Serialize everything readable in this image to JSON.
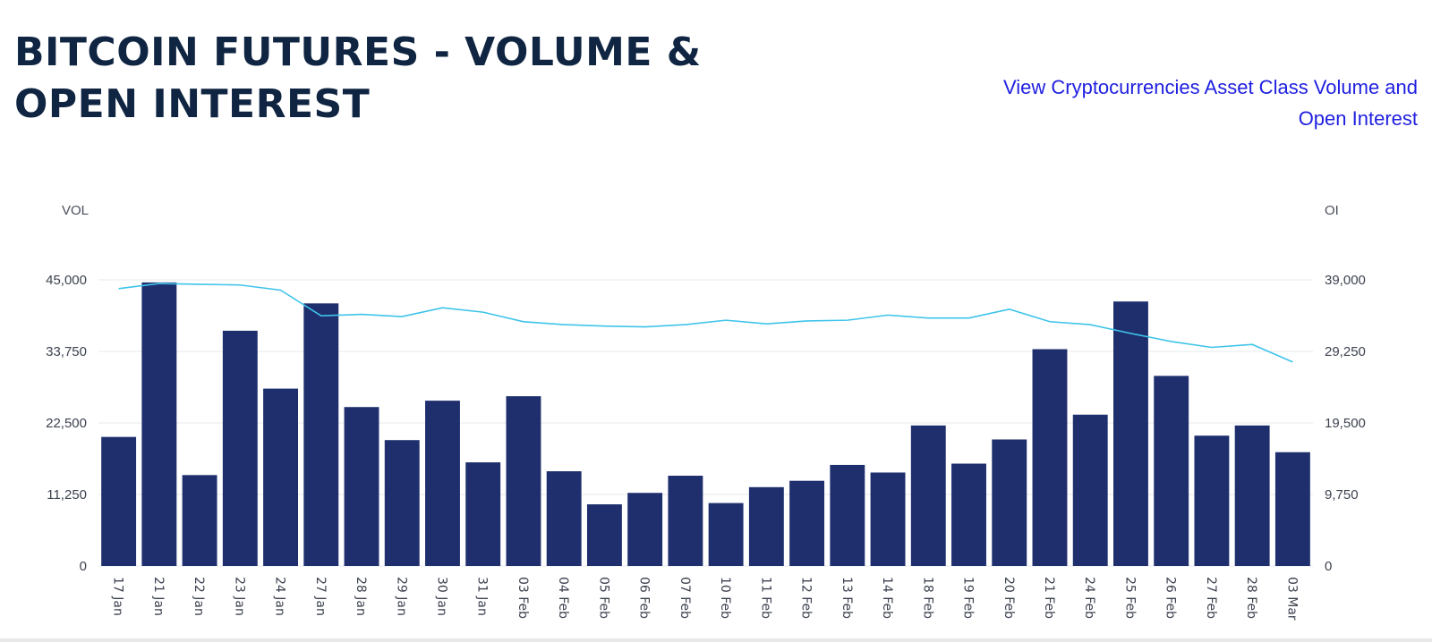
{
  "header": {
    "title": "BITCOIN FUTURES - VOLUME & OPEN INTEREST",
    "link_text": "View Cryptocurrencies Asset Class Volume and Open Interest"
  },
  "colors": {
    "title": "#0f2542",
    "link": "#1f1fe0",
    "bar": "#1f2f6e",
    "line": "#3fc4ea",
    "grid": "#e6e8ec"
  },
  "chart_data": {
    "type": "bar",
    "left_axis_label": "VOL",
    "right_axis_label": "OI",
    "categories": [
      "17 Jan",
      "21 Jan",
      "22 Jan",
      "23 Jan",
      "24 Jan",
      "27 Jan",
      "28 Jan",
      "29 Jan",
      "30 Jan",
      "31 Jan",
      "03 Feb",
      "04 Feb",
      "05 Feb",
      "06 Feb",
      "07 Feb",
      "10 Feb",
      "11 Feb",
      "12 Feb",
      "13 Feb",
      "14 Feb",
      "18 Feb",
      "19 Feb",
      "20 Feb",
      "21 Feb",
      "24 Feb",
      "25 Feb",
      "26 Feb",
      "27 Feb",
      "28 Feb",
      "03 Mar"
    ],
    "ylim_left": [
      0,
      45000
    ],
    "yticks_left": [
      "0",
      "11,250",
      "22,500",
      "33,750",
      "45,000"
    ],
    "ylim_right": [
      0,
      39000
    ],
    "yticks_right": [
      "0",
      "9,750",
      "19,500",
      "29,250",
      "39,000"
    ],
    "grid": true,
    "series": [
      {
        "type": "bar",
        "axis": "left",
        "values": [
          20300,
          44600,
          14300,
          37000,
          27900,
          41300,
          25000,
          19800,
          26000,
          16300,
          26700,
          14900,
          9700,
          11500,
          14200,
          9900,
          12400,
          13400,
          15900,
          14700,
          22100,
          16100,
          19900,
          34100,
          23800,
          41600,
          29900,
          20500,
          22100,
          17900
        ]
      },
      {
        "type": "line",
        "axis": "right",
        "values": [
          37800,
          38500,
          38400,
          38300,
          37600,
          34100,
          34300,
          34000,
          35200,
          34600,
          33300,
          32900,
          32700,
          32600,
          32900,
          33500,
          33000,
          33400,
          33500,
          34200,
          33800,
          33800,
          35000,
          33300,
          32900,
          31700,
          30600,
          29800,
          30200,
          27800
        ]
      }
    ]
  }
}
